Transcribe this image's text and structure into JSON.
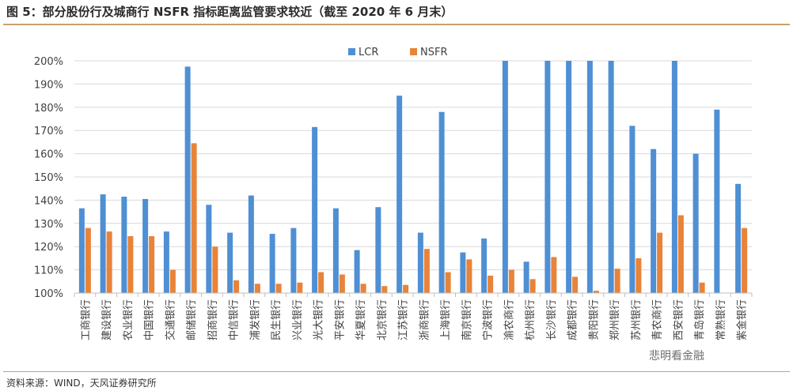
{
  "figure": {
    "title": "图 5：部分股份行及城商行 NSFR 指标距离监管要求较近（截至 2020 年 6 月末）",
    "source": "资料来源：WIND，天风证券研究所",
    "watermark": "悲明看金融"
  },
  "chart_data": {
    "type": "bar",
    "categories": [
      "工商银行",
      "建设银行",
      "农业银行",
      "中国银行",
      "交通银行",
      "邮储银行",
      "招商银行",
      "中信银行",
      "浦发银行",
      "民生银行",
      "兴业银行",
      "光大银行",
      "平安银行",
      "华夏银行",
      "北京银行",
      "江苏银行",
      "浙商银行",
      "上海银行",
      "南京银行",
      "宁波银行",
      "渝农商行",
      "杭州银行",
      "长沙银行",
      "成都银行",
      "贵阳银行",
      "郑州银行",
      "苏州银行",
      "青农商行",
      "西安银行",
      "青岛银行",
      "常熟银行",
      "紫金银行"
    ],
    "series": [
      {
        "name": "LCR",
        "color": "#4f8fd4",
        "values": [
          136.5,
          142.5,
          141.5,
          140.5,
          126.5,
          197.5,
          138,
          126,
          142,
          125.5,
          128,
          171.5,
          136.5,
          118.5,
          137,
          185,
          126,
          178,
          117.5,
          123.5,
          200,
          113.5,
          200,
          200,
          200,
          200,
          172,
          162,
          200,
          160,
          179,
          147
        ]
      },
      {
        "name": "NSFR",
        "color": "#e8833a",
        "values": [
          128,
          126.5,
          124.5,
          124.5,
          110,
          164.5,
          120,
          105.5,
          104,
          104,
          104.5,
          109,
          108,
          104,
          103,
          103.5,
          119,
          109,
          114.5,
          107.5,
          110,
          106,
          115.5,
          107,
          101,
          110.5,
          115,
          126,
          133.5,
          104.5,
          null,
          128
        ]
      }
    ],
    "yticks": [
      "100%",
      "110%",
      "120%",
      "130%",
      "140%",
      "150%",
      "160%",
      "170%",
      "180%",
      "190%",
      "200%"
    ],
    "ylim": [
      100,
      200
    ],
    "legend_position": "top-center",
    "grid": true
  }
}
